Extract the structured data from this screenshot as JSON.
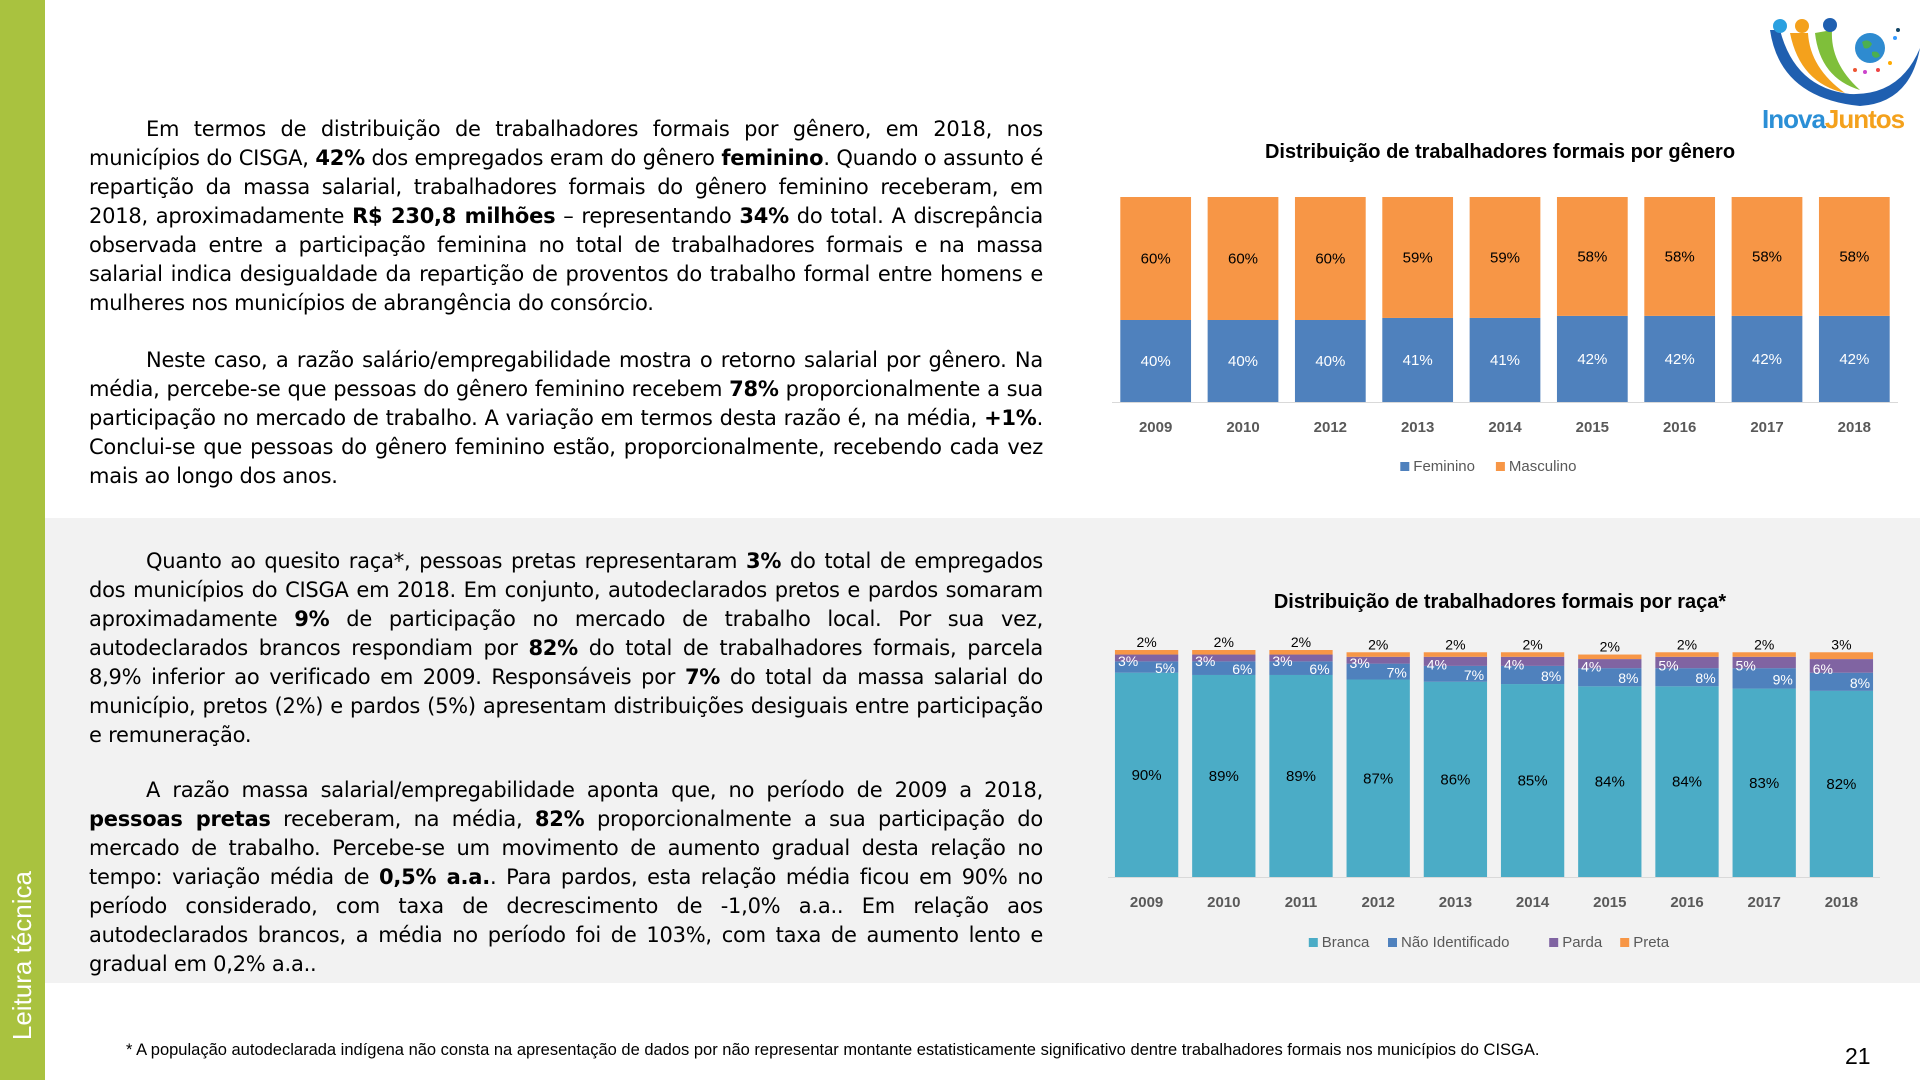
{
  "sidebar": {
    "label": "Leitura técnica"
  },
  "logo": {
    "text_a": "Inova",
    "text_b": "Juntos"
  },
  "paragraphs": [
    [
      {
        "t": "Em termos de distribuição de trabalhadores formais por gênero, em 2018, nos municípios do CISGA, "
      },
      {
        "t": "42%",
        "b": true
      },
      {
        "t": " dos empregados eram do gênero "
      },
      {
        "t": "feminino",
        "b": true
      },
      {
        "t": ". Quando o assunto é repartição da massa salarial, trabalhadores formais do gênero feminino receberam, em 2018, aproximadamente "
      },
      {
        "t": "R$ 230,8 milhões",
        "b": true
      },
      {
        "t": " – representando "
      },
      {
        "t": "34%",
        "b": true
      },
      {
        "t": " do total. A discrepância observada entre a participação feminina no total de trabalhadores formais e na massa salarial indica desigualdade da repartição de proventos do trabalho formal entre homens e mulheres nos municípios de abrangência do consórcio."
      }
    ],
    [
      {
        "t": "Neste caso, a razão salário/empregabilidade mostra o retorno salarial por gênero. Na média, percebe-se que pessoas do gênero feminino recebem "
      },
      {
        "t": "78%",
        "b": true
      },
      {
        "t": " proporcionalmente a sua participação no mercado de trabalho. A variação em termos desta razão é, na média, "
      },
      {
        "t": "+1%",
        "b": true
      },
      {
        "t": ". Conclui-se que pessoas do gênero feminino estão, proporcionalmente, recebendo cada vez mais ao longo dos anos."
      }
    ],
    [
      {
        "t": "Quanto ao quesito raça*, pessoas pretas representaram "
      },
      {
        "t": "3%",
        "b": true
      },
      {
        "t": " do total de empregados dos municípios do CISGA em 2018. Em conjunto, autodeclarados pretos e pardos somaram aproximadamente "
      },
      {
        "t": "9%",
        "b": true
      },
      {
        "t": " de participação no mercado de trabalho local. Por sua vez, autodeclarados brancos respondiam por "
      },
      {
        "t": "82%",
        "b": true
      },
      {
        "t": " do total de trabalhadores formais, parcela 8,9% inferior ao verificado em 2009. Responsáveis por "
      },
      {
        "t": "7%",
        "b": true
      },
      {
        "t": " do total da massa salarial do município, pretos (2%) e pardos (5%) apresentam distribuições desiguais entre participação e remuneração."
      }
    ],
    [
      {
        "t": "A razão massa salarial/empregabilidade aponta que, no período de 2009 a 2018, "
      },
      {
        "t": "pessoas pretas",
        "b": true
      },
      {
        "t": " receberam, na média, "
      },
      {
        "t": "82%",
        "b": true
      },
      {
        "t": " proporcionalmente a sua participação do mercado de trabalho. Percebe-se um movimento de aumento gradual desta relação no tempo: variação média de "
      },
      {
        "t": "0,5% a.a.",
        "b": true
      },
      {
        "t": ". Para pardos, esta relação média ficou em 90% no período considerado, com taxa de decrescimento de -1,0% a.a.. Em relação aos autodeclarados brancos, a média no período foi de 103%, com taxa de aumento lento e gradual em 0,2% a.a.."
      }
    ]
  ],
  "footnote": "* A população autodeclarada indígena não consta na apresentação de dados por não representar montante estatisticamente significativo dentre trabalhadores formais nos municípios do CISGA.",
  "page_number": "21",
  "chart_data": [
    {
      "type": "bar",
      "stacked": true,
      "title": "Distribuição de trabalhadores formais por gênero",
      "categories": [
        "2009",
        "2010",
        "2012",
        "2013",
        "2014",
        "2015",
        "2016",
        "2017",
        "2018"
      ],
      "series": [
        {
          "name": "Feminino",
          "color": "#4f81bd",
          "label_color": "#ffffff",
          "values": [
            40,
            40,
            40,
            41,
            41,
            42,
            42,
            42,
            42
          ]
        },
        {
          "name": "Masculino",
          "color": "#f79646",
          "label_color": "#000000",
          "values": [
            60,
            60,
            60,
            59,
            59,
            58,
            58,
            58,
            58
          ]
        }
      ],
      "ylim": [
        0,
        100
      ],
      "unit": "%",
      "legend": "bottom"
    },
    {
      "type": "bar",
      "stacked": true,
      "title": "Distribuição de trabalhadores formais por raça*",
      "categories": [
        "2009",
        "2010",
        "2011",
        "2012",
        "2013",
        "2014",
        "2015",
        "2016",
        "2017",
        "2018"
      ],
      "series": [
        {
          "name": "Branca",
          "color": "#4bacc6",
          "label_color": "#000000",
          "values": [
            90,
            89,
            89,
            87,
            86,
            85,
            84,
            84,
            83,
            82
          ]
        },
        {
          "name": "Não Identificado",
          "color": "#4f81bd",
          "label_color": "#ffffff",
          "values": [
            5,
            6,
            6,
            7,
            7,
            8,
            8,
            8,
            9,
            8
          ]
        },
        {
          "name": "Parda",
          "color": "#8064a2",
          "label_color": "#ffffff",
          "values": [
            3,
            3,
            3,
            3,
            4,
            4,
            4,
            5,
            5,
            6
          ]
        },
        {
          "name": "Preta",
          "color": "#f79646",
          "label_color": "#000000",
          "values": [
            2,
            2,
            2,
            2,
            2,
            2,
            2,
            2,
            2,
            3
          ]
        }
      ],
      "ylim": [
        0,
        100
      ],
      "unit": "%",
      "legend": "bottom"
    }
  ]
}
